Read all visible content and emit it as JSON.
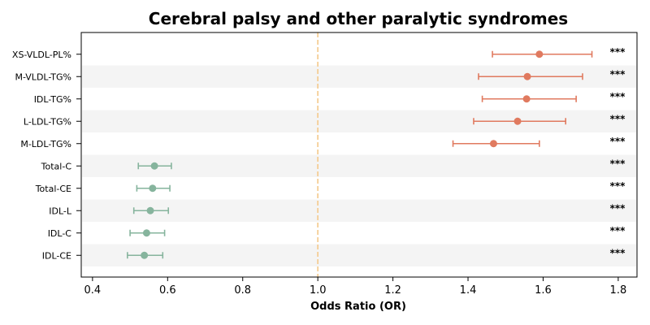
{
  "chart_data": {
    "type": "forest",
    "title": "Cerebral palsy and other paralytic syndromes",
    "xlabel": "Odds Ratio (OR)",
    "xlim": [
      0.37,
      1.85
    ],
    "xticks": [
      0.4,
      0.6,
      0.8,
      1.0,
      1.2,
      1.4,
      1.6,
      1.8
    ],
    "xtick_labels": [
      "0.4",
      "0.6",
      "0.8",
      "1.0",
      "1.2",
      "1.4",
      "1.6",
      "1.8"
    ],
    "reference_line": 1.0,
    "reference_color": "#f5c98a",
    "colors": {
      "above": "#e07a5f",
      "below": "#86b49d"
    },
    "rows": [
      {
        "label": "XS-VLDL-PL%",
        "or": 1.59,
        "low": 1.465,
        "high": 1.73,
        "sig": "***",
        "group": "above"
      },
      {
        "label": "M-VLDL-TG%",
        "or": 1.558,
        "low": 1.428,
        "high": 1.705,
        "sig": "***",
        "group": "above"
      },
      {
        "label": "IDL-TG%",
        "or": 1.556,
        "low": 1.438,
        "high": 1.688,
        "sig": "***",
        "group": "above"
      },
      {
        "label": "L-LDL-TG%",
        "or": 1.532,
        "low": 1.415,
        "high": 1.66,
        "sig": "***",
        "group": "above"
      },
      {
        "label": "M-LDL-TG%",
        "or": 1.468,
        "low": 1.36,
        "high": 1.59,
        "sig": "***",
        "group": "above"
      },
      {
        "label": "Total-C",
        "or": 0.565,
        "low": 0.522,
        "high": 0.61,
        "sig": "***",
        "group": "below"
      },
      {
        "label": "Total-CE",
        "or": 0.56,
        "low": 0.518,
        "high": 0.606,
        "sig": "***",
        "group": "below"
      },
      {
        "label": "IDL-L",
        "or": 0.554,
        "low": 0.51,
        "high": 0.602,
        "sig": "***",
        "group": "below"
      },
      {
        "label": "IDL-C",
        "or": 0.544,
        "low": 0.5,
        "high": 0.592,
        "sig": "***",
        "group": "below"
      },
      {
        "label": "IDL-CE",
        "or": 0.538,
        "low": 0.493,
        "high": 0.587,
        "sig": "***",
        "group": "below"
      }
    ]
  }
}
